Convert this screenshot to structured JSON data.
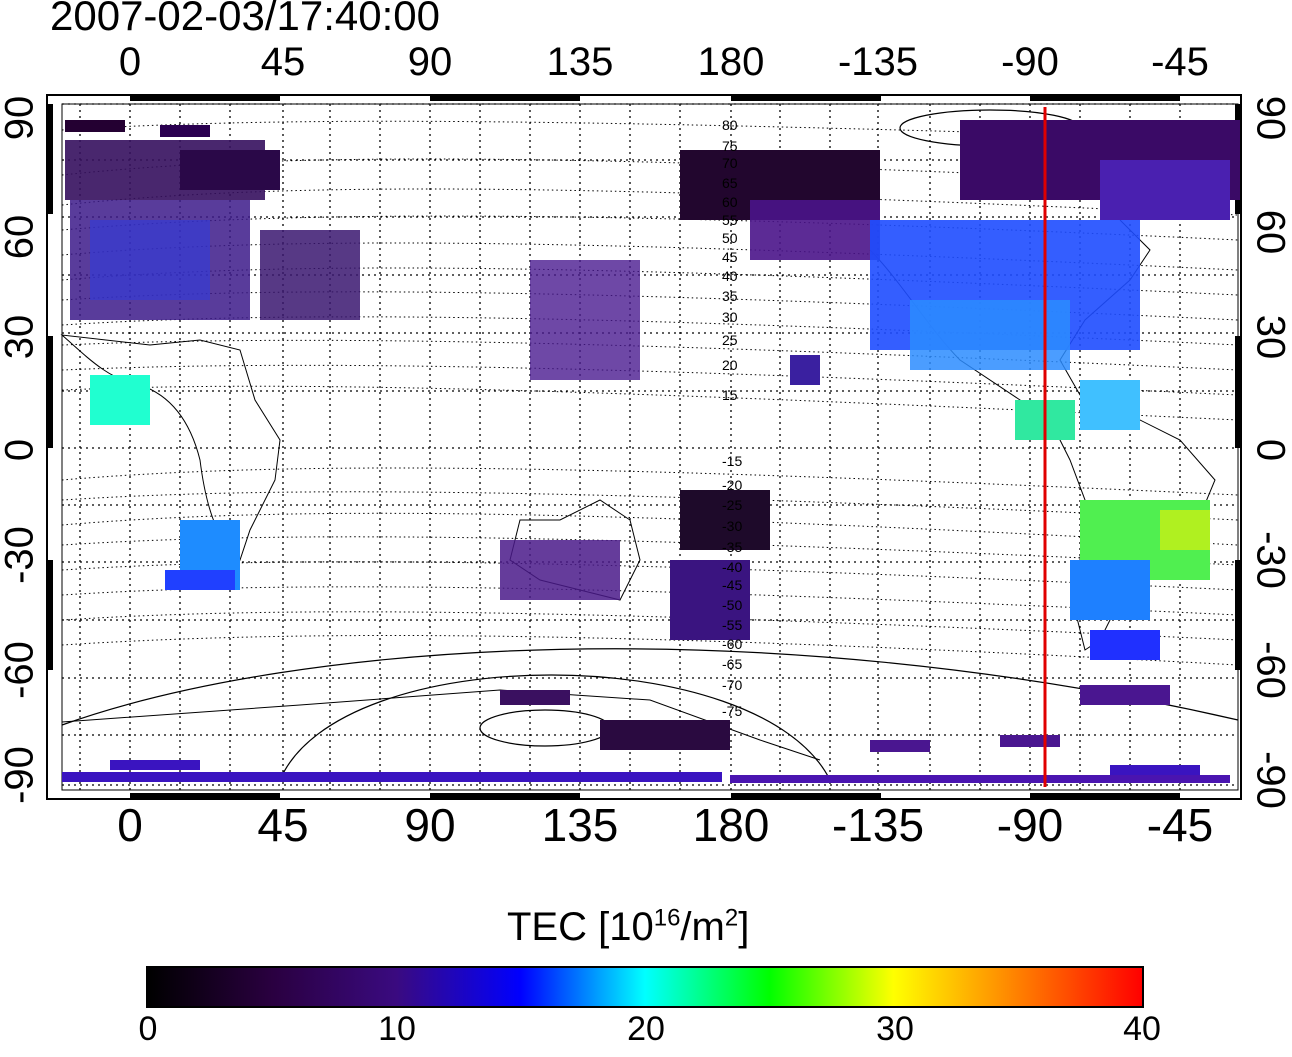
{
  "timestamp": "2007-02-03/17:40:00",
  "map": {
    "lon_ticks": [
      "0",
      "45",
      "90",
      "135",
      "180",
      "-135",
      "-90",
      "-45"
    ],
    "lat_ticks": [
      "90",
      "60",
      "30",
      "0",
      "-30",
      "-60",
      "-90"
    ],
    "mlat_labels": [
      "80",
      "75",
      "70",
      "65",
      "60",
      "55",
      "50",
      "45",
      "40",
      "35",
      "30",
      "25",
      "20",
      "15",
      "-15",
      "-20",
      "-25",
      "-30",
      "-35",
      "-40",
      "-45",
      "-50",
      "-55",
      "-60",
      "-65",
      "-70",
      "-75"
    ],
    "meridian_marker": {
      "lon": -85,
      "color": "#e00000"
    }
  },
  "colorbar": {
    "title": "TEC  [10",
    "exp1": "16",
    "mid": "/m",
    "exp2": "2",
    "end": "]",
    "ticks": [
      "0",
      "10",
      "20",
      "30",
      "40"
    ],
    "range": [
      0,
      40
    ],
    "colors": [
      "#000000",
      "#2a0040",
      "#3a0a80",
      "#0000ff",
      "#00ffff",
      "#00ff00",
      "#ffff00",
      "#ff8000",
      "#ff0000"
    ]
  }
}
